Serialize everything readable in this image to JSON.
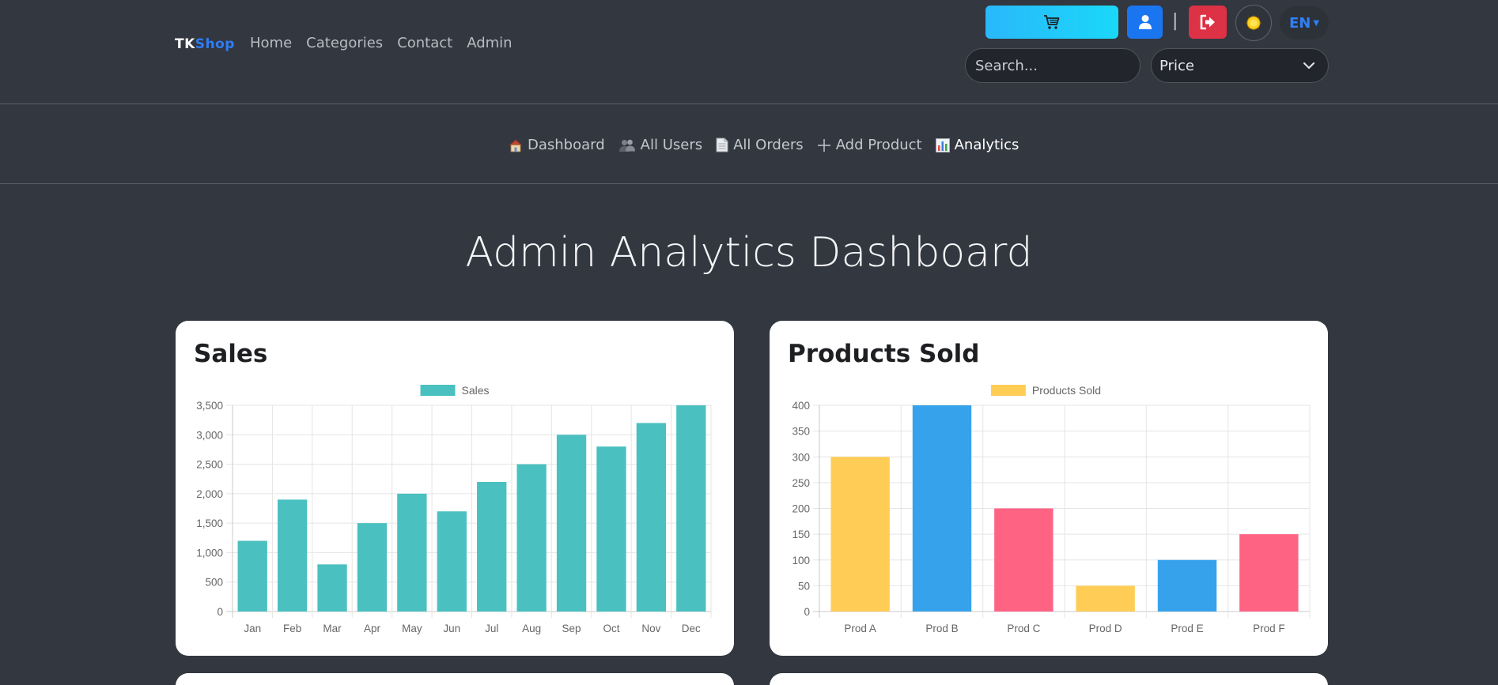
{
  "navbar": {
    "brand_tk": "TK",
    "brand_shop": "Shop",
    "links": [
      "Home",
      "Categories",
      "Contact",
      "Admin"
    ],
    "separator": "|",
    "lang": "EN",
    "search_placeholder": "Search...",
    "price_select": "Price"
  },
  "subnav": {
    "items": [
      "Dashboard",
      "All Users",
      "All Orders",
      "Add Product",
      "Analytics"
    ],
    "active": "Analytics"
  },
  "page": {
    "title": "Admin Analytics Dashboard"
  },
  "cards": {
    "sales_title": "Sales",
    "products_title": "Products Sold"
  },
  "colors": {
    "sales": "#4bc0c0",
    "yellow": "#ffcd56",
    "blue": "#36a2eb",
    "pink": "#ff6384"
  },
  "chart_data": [
    {
      "type": "bar",
      "legend": "Sales",
      "legend_position": "top",
      "grid": true,
      "categories": [
        "Jan",
        "Feb",
        "Mar",
        "Apr",
        "May",
        "Jun",
        "Jul",
        "Aug",
        "Sep",
        "Oct",
        "Nov",
        "Dec"
      ],
      "series": [
        {
          "name": "Sales",
          "values": [
            1200,
            1900,
            800,
            1500,
            2000,
            1700,
            2200,
            2500,
            3000,
            2800,
            3200,
            3500
          ]
        }
      ],
      "ylim": [
        0,
        3500
      ],
      "yticks": [
        "0",
        "500",
        "1,000",
        "1,500",
        "2,000",
        "2,500",
        "3,000",
        "3,500"
      ],
      "bar_colors": [
        "#4bc0c0"
      ]
    },
    {
      "type": "bar",
      "legend": "Products Sold",
      "legend_position": "top",
      "grid": true,
      "categories": [
        "Prod A",
        "Prod B",
        "Prod C",
        "Prod D",
        "Prod E",
        "Prod F"
      ],
      "series": [
        {
          "name": "Products Sold",
          "values": [
            300,
            400,
            200,
            50,
            100,
            150
          ]
        }
      ],
      "ylim": [
        0,
        400
      ],
      "yticks": [
        "0",
        "50",
        "100",
        "150",
        "200",
        "250",
        "300",
        "350",
        "400"
      ],
      "bar_colors": [
        "#ffcd56",
        "#36a2eb",
        "#ff6384",
        "#ffcd56",
        "#36a2eb",
        "#ff6384"
      ]
    }
  ]
}
